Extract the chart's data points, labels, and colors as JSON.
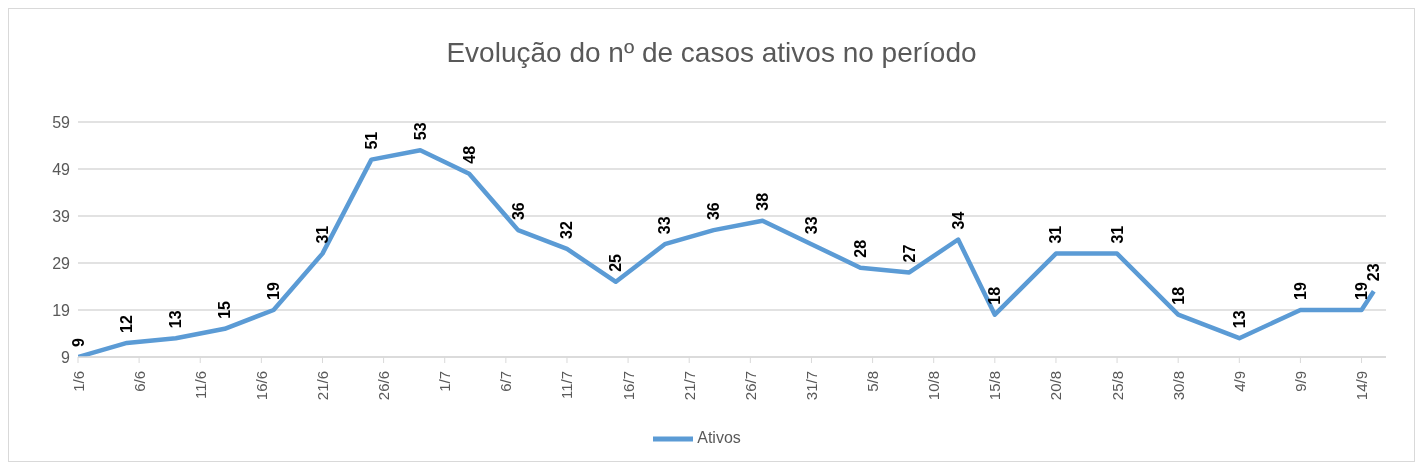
{
  "chart_data": {
    "type": "line",
    "title": "Evolução do nº de casos ativos no período",
    "x": [
      "--06-01",
      "--06-05",
      "--06-09",
      "--06-13",
      "--06-17",
      "--06-21",
      "--06-25",
      "--06-29",
      "--07-03",
      "--07-07",
      "--07-11",
      "--07-15",
      "--07-19",
      "--07-23",
      "--07-27",
      "--07-31",
      "--08-04",
      "--08-08",
      "--08-12",
      "--08-15",
      "--08-20",
      "--08-25",
      "--08-30",
      "--09-04",
      "--09-09",
      "--09-14",
      "--09-15"
    ],
    "series": [
      {
        "name": "Ativos",
        "color": "#5b9bd5",
        "values": [
          9,
          12,
          13,
          15,
          19,
          31,
          51,
          53,
          48,
          36,
          32,
          25,
          33,
          36,
          38,
          33,
          28,
          27,
          34,
          18,
          31,
          31,
          18,
          13,
          19,
          19,
          23
        ],
        "value_labels": [
          "9",
          "12",
          "13",
          "15",
          "19",
          "31",
          "51",
          "53",
          "48",
          "36",
          "32",
          "25",
          "33",
          "36",
          "38",
          "33",
          "28",
          "27",
          "34",
          "18",
          "31",
          "31",
          "18",
          "13",
          "19",
          "19",
          "23"
        ]
      }
    ],
    "xlim": [
      "--06-01",
      "--09-16"
    ],
    "xticks": [
      {
        "value": "--06-01",
        "label": "1/6"
      },
      {
        "value": "--06-06",
        "label": "6/6"
      },
      {
        "value": "--06-11",
        "label": "11/6"
      },
      {
        "value": "--06-16",
        "label": "16/6"
      },
      {
        "value": "--06-21",
        "label": "21/6"
      },
      {
        "value": "--06-26",
        "label": "26/6"
      },
      {
        "value": "--07-01",
        "label": "1/7"
      },
      {
        "value": "--07-06",
        "label": "6/7"
      },
      {
        "value": "--07-11",
        "label": "11/7"
      },
      {
        "value": "--07-16",
        "label": "16/7"
      },
      {
        "value": "--07-21",
        "label": "21/7"
      },
      {
        "value": "--07-26",
        "label": "26/7"
      },
      {
        "value": "--07-31",
        "label": "31/7"
      },
      {
        "value": "--08-05",
        "label": "5/8"
      },
      {
        "value": "--08-10",
        "label": "10/8"
      },
      {
        "value": "--08-15",
        "label": "15/8"
      },
      {
        "value": "--08-20",
        "label": "20/8"
      },
      {
        "value": "--08-25",
        "label": "25/8"
      },
      {
        "value": "--08-30",
        "label": "30/8"
      },
      {
        "value": "--09-04",
        "label": "4/9"
      },
      {
        "value": "--09-09",
        "label": "9/9"
      },
      {
        "value": "--09-14",
        "label": "14/9"
      }
    ],
    "ylim": [
      9,
      59
    ],
    "yticks": [
      9,
      19,
      29,
      39,
      49,
      59
    ],
    "grid": "y",
    "legend": "bottom",
    "marker": "none",
    "line_style": "solid"
  }
}
